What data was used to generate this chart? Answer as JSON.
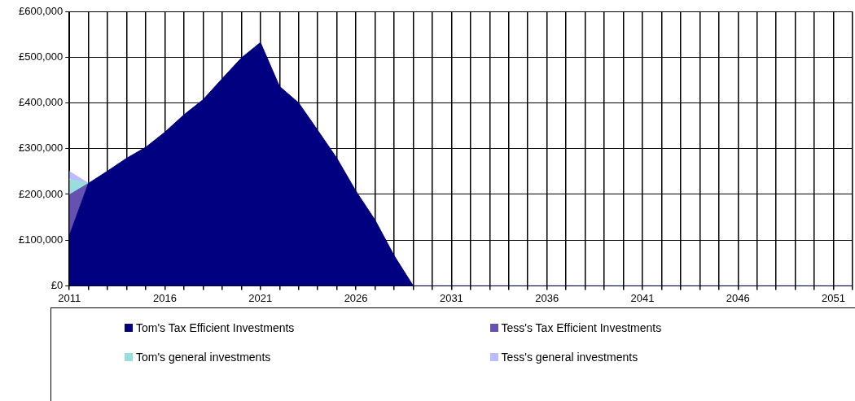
{
  "chart_data": {
    "type": "area",
    "stacked": true,
    "categories": [
      "2011",
      null,
      null,
      null,
      null,
      "2016",
      null,
      null,
      null,
      null,
      "2021",
      null,
      null,
      null,
      null,
      "2026",
      null,
      null,
      null,
      null,
      "2031",
      null,
      null,
      null,
      null,
      "2036",
      null,
      null,
      null,
      null,
      "2041",
      null,
      null,
      null,
      null,
      "2046",
      null,
      null,
      null,
      null,
      "2051",
      null
    ],
    "series": [
      {
        "name": "Tom's Tax Efficient Investments",
        "color": "#000080",
        "values": [
          110000,
          224000,
          251000,
          279000,
          303000,
          336000,
          374000,
          407000,
          453000,
          498000,
          532000,
          436000,
          400000,
          340000,
          279000,
          207000,
          144000,
          66000,
          0,
          0,
          0,
          0,
          0,
          0,
          0,
          0,
          0,
          0,
          0,
          0,
          0,
          0,
          0,
          0,
          0,
          0,
          0,
          0,
          0,
          0,
          0,
          0
        ]
      },
      {
        "name": "Tess's Tax Efficient Investments",
        "color": "#6650b0",
        "values": [
          89000,
          0,
          null,
          null,
          null,
          null,
          null,
          null,
          null,
          null,
          null,
          null,
          null,
          null,
          null,
          null,
          null,
          null,
          null,
          null,
          null,
          null,
          null,
          null,
          null,
          null,
          null,
          null,
          null,
          null,
          null,
          null,
          null,
          null,
          null,
          null,
          null,
          null,
          null,
          null,
          null,
          null
        ]
      },
      {
        "name": "Tom's general investments",
        "color": "#99dddd",
        "values": [
          34000,
          0,
          null,
          null,
          null,
          null,
          null,
          null,
          null,
          null,
          null,
          null,
          null,
          null,
          null,
          null,
          null,
          null,
          null,
          null,
          null,
          null,
          null,
          null,
          null,
          null,
          null,
          null,
          null,
          null,
          null,
          null,
          null,
          null,
          null,
          null,
          null,
          null,
          null,
          null,
          null,
          null
        ]
      },
      {
        "name": "Tess's general investments",
        "color": "#bbbbff",
        "values": [
          17000,
          0,
          null,
          null,
          null,
          null,
          null,
          null,
          null,
          null,
          null,
          null,
          null,
          null,
          null,
          null,
          null,
          null,
          null,
          null,
          null,
          null,
          null,
          null,
          null,
          null,
          null,
          null,
          null,
          null,
          null,
          null,
          null,
          null,
          null,
          null,
          null,
          null,
          null,
          null,
          null,
          null
        ]
      }
    ],
    "ylim": [
      0,
      600000
    ],
    "yticks": [
      {
        "value": 0,
        "label": "£0"
      },
      {
        "value": 100000,
        "label": "£100,000"
      },
      {
        "value": 200000,
        "label": "£200,000"
      },
      {
        "value": 300000,
        "label": "£300,000"
      },
      {
        "value": 400000,
        "label": "£400,000"
      },
      {
        "value": 500000,
        "label": "£500,000"
      },
      {
        "value": 600000,
        "label": "£600,000"
      }
    ],
    "grid": true,
    "legend": "bottom",
    "marker": "none"
  }
}
